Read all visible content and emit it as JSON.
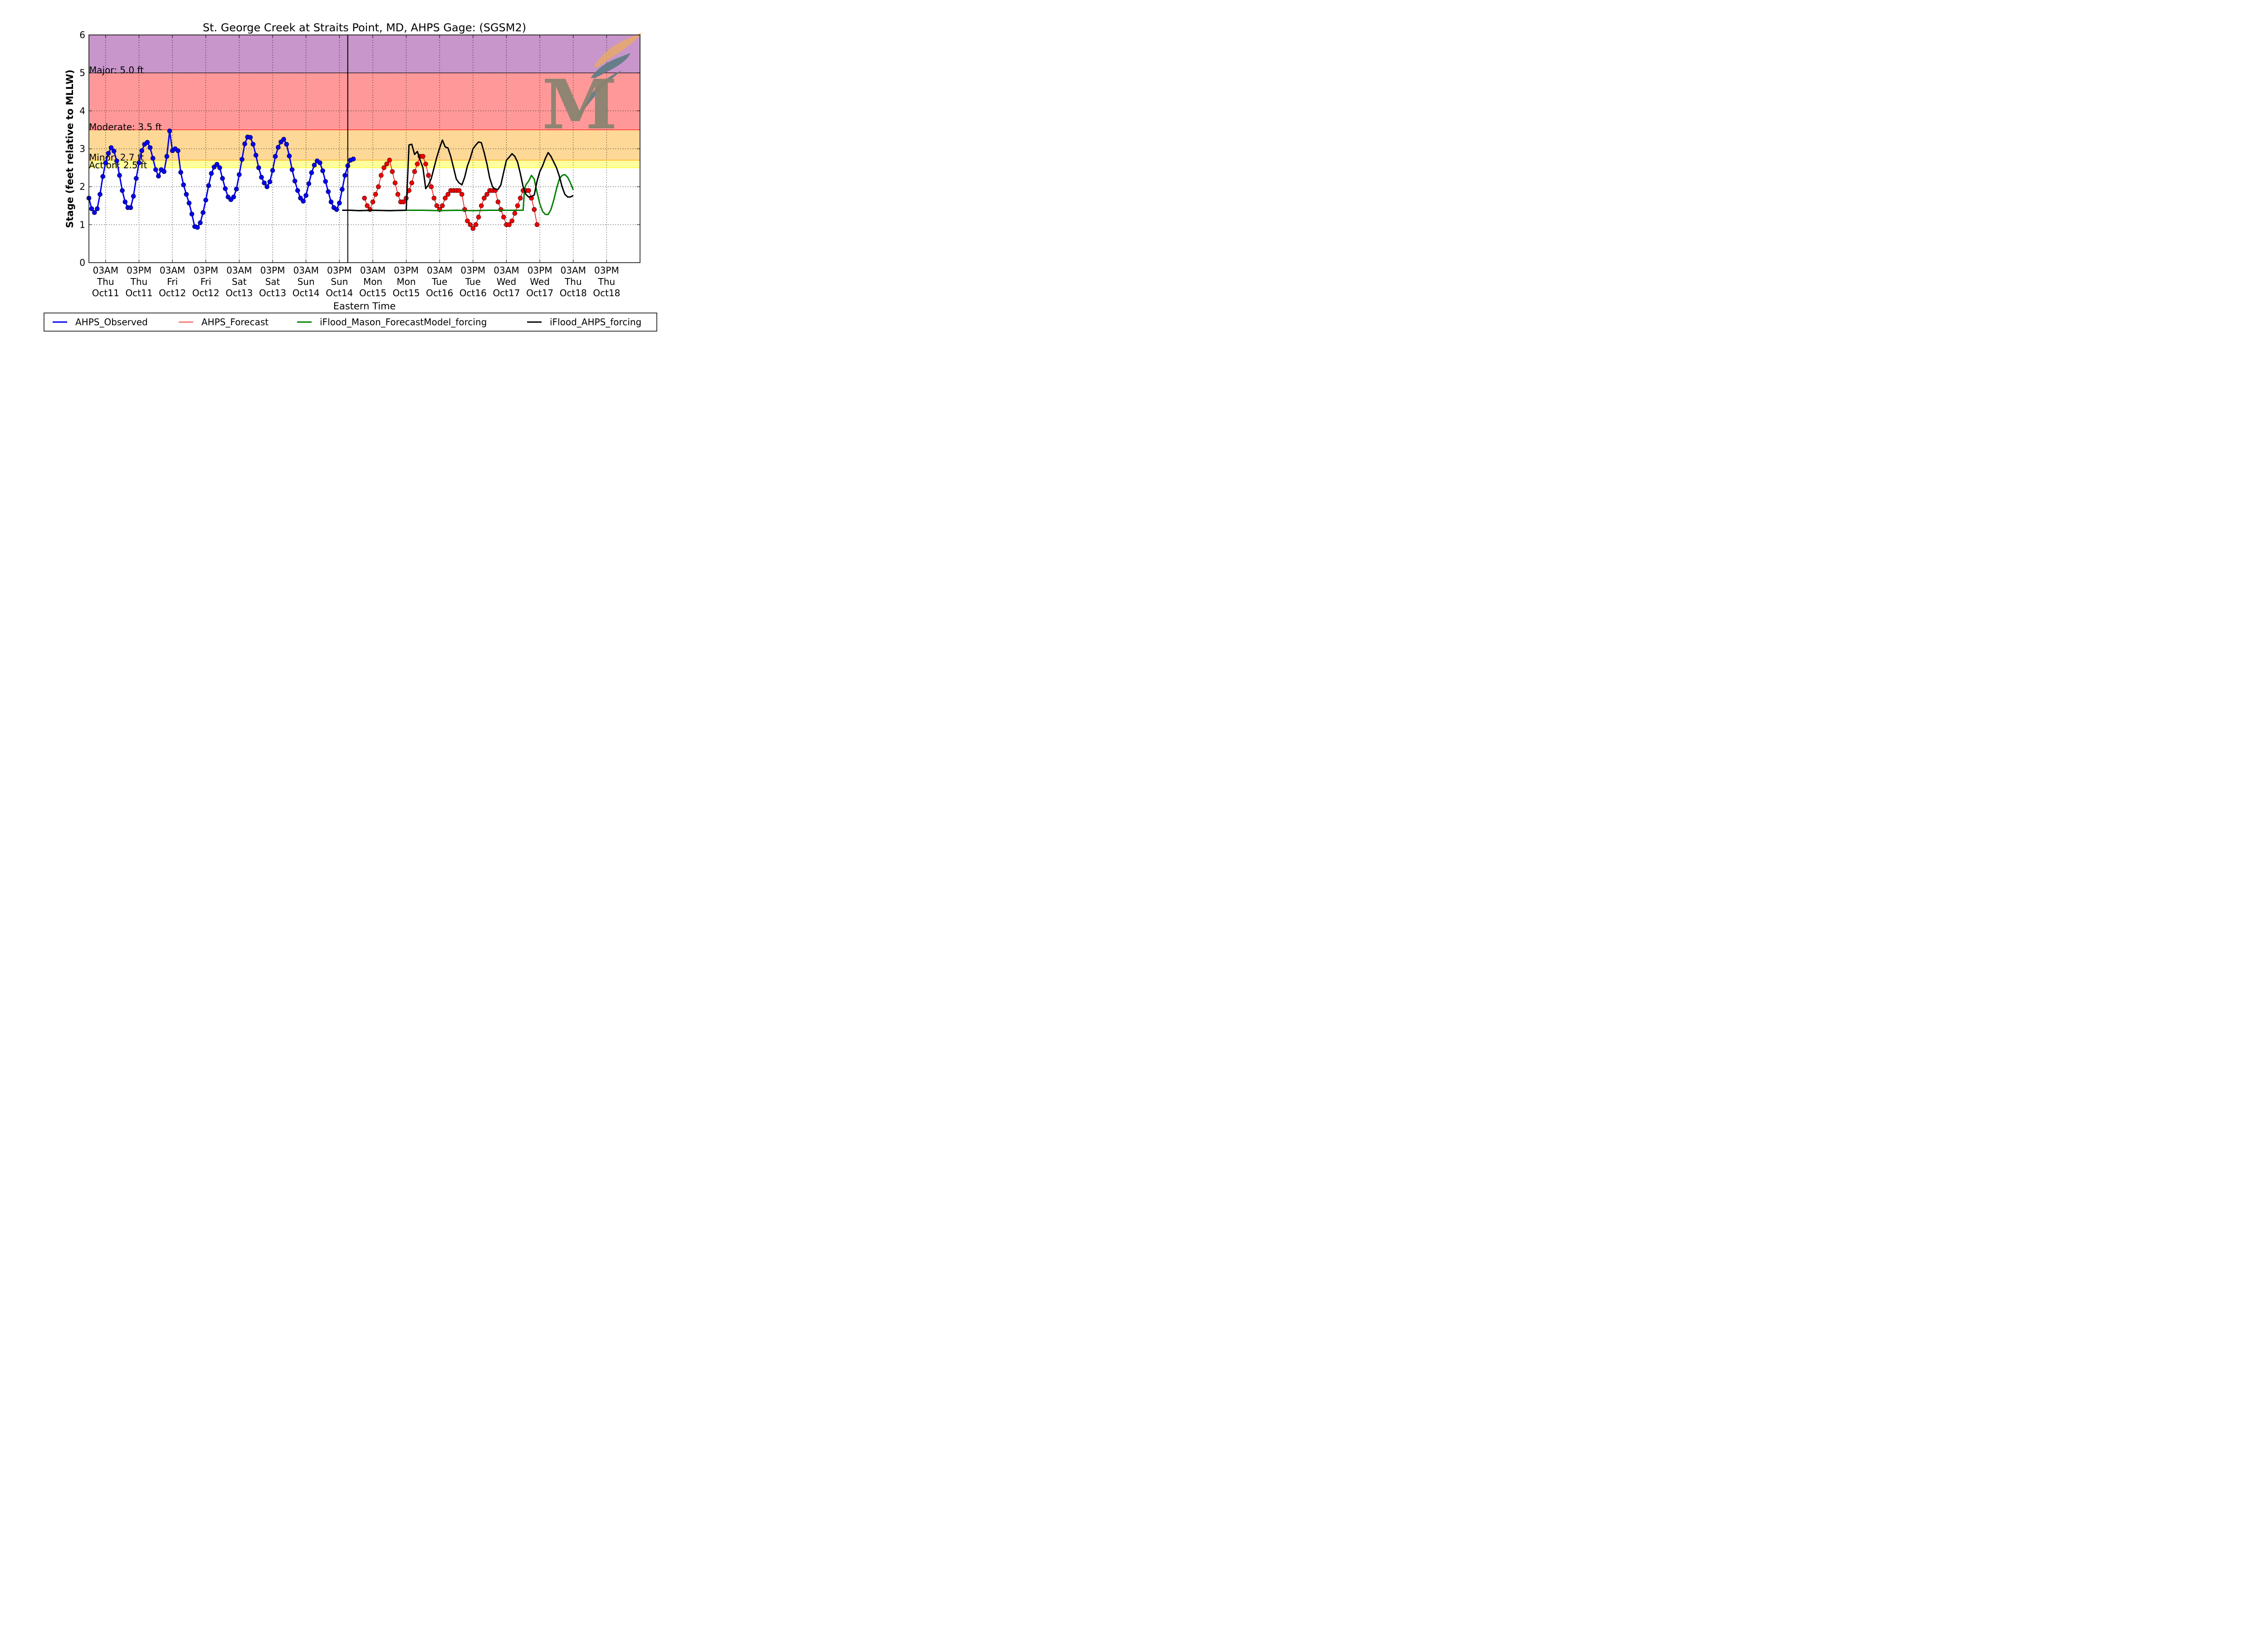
{
  "chart_data": {
    "type": "line",
    "title": "St. George Creek at Straits Point, MD, AHPS Gage: (SGSM2)",
    "xlabel": "Eastern Time",
    "ylabel": "Stage (feet relative to MLLW)",
    "ylim": [
      0,
      6
    ],
    "yticks": [
      0,
      1,
      2,
      3,
      4,
      5,
      6
    ],
    "xlim": [
      "2018-10-10 21:00",
      "2018-10-19 03:00"
    ],
    "xticks": [
      {
        "time": "2018-10-11 03:00",
        "label": [
          "03AM",
          "Thu",
          "Oct11"
        ]
      },
      {
        "time": "2018-10-11 15:00",
        "label": [
          "03PM",
          "Thu",
          "Oct11"
        ]
      },
      {
        "time": "2018-10-12 03:00",
        "label": [
          "03AM",
          "Fri",
          "Oct12"
        ]
      },
      {
        "time": "2018-10-12 15:00",
        "label": [
          "03PM",
          "Fri",
          "Oct12"
        ]
      },
      {
        "time": "2018-10-13 03:00",
        "label": [
          "03AM",
          "Sat",
          "Oct13"
        ]
      },
      {
        "time": "2018-10-13 15:00",
        "label": [
          "03PM",
          "Sat",
          "Oct13"
        ]
      },
      {
        "time": "2018-10-14 03:00",
        "label": [
          "03AM",
          "Sun",
          "Oct14"
        ]
      },
      {
        "time": "2018-10-14 15:00",
        "label": [
          "03PM",
          "Sun",
          "Oct14"
        ]
      },
      {
        "time": "2018-10-15 03:00",
        "label": [
          "03AM",
          "Mon",
          "Oct15"
        ]
      },
      {
        "time": "2018-10-15 15:00",
        "label": [
          "03PM",
          "Mon",
          "Oct15"
        ]
      },
      {
        "time": "2018-10-16 03:00",
        "label": [
          "03AM",
          "Tue",
          "Oct16"
        ]
      },
      {
        "time": "2018-10-16 15:00",
        "label": [
          "03PM",
          "Tue",
          "Oct16"
        ]
      },
      {
        "time": "2018-10-17 03:00",
        "label": [
          "03AM",
          "Wed",
          "Oct17"
        ]
      },
      {
        "time": "2018-10-17 15:00",
        "label": [
          "03PM",
          "Wed",
          "Oct17"
        ]
      },
      {
        "time": "2018-10-18 03:00",
        "label": [
          "03AM",
          "Thu",
          "Oct18"
        ]
      },
      {
        "time": "2018-10-18 15:00",
        "label": [
          "03PM",
          "Thu",
          "Oct18"
        ]
      }
    ],
    "now_marker": "2018-10-14 18:00",
    "grid": true,
    "legend_position": "bottom",
    "flood_bands": [
      {
        "name": "Major",
        "from": 5.0,
        "to": 6.0,
        "color": "#c896ca"
      },
      {
        "name": "Moderate",
        "from": 3.5,
        "to": 5.0,
        "color": "#ff9999"
      },
      {
        "name": "Minor",
        "from": 2.7,
        "to": 3.5,
        "color": "#fdd897"
      },
      {
        "name": "Action",
        "from": 2.5,
        "to": 2.7,
        "color": "#ffff9e"
      }
    ],
    "thresholds": [
      {
        "label": "Major: 5.0 ft",
        "value": 5.0,
        "line_color": "#000000"
      },
      {
        "label": "Moderate: 3.5 ft",
        "value": 3.5,
        "line_color": "#ff0000"
      },
      {
        "label": "Minor: 2.7 ft",
        "value": 2.7,
        "line_color": "#ffa500"
      },
      {
        "label": "Action: 2.5 ft",
        "value": 2.5,
        "line_color": "#ffff00"
      }
    ],
    "series": [
      {
        "name": "AHPS_Observed",
        "color": "#0000ee",
        "marker": "circle",
        "x": [
          "2018-10-10 21:00",
          "2018-10-10 22:00",
          "2018-10-10 23:00",
          "2018-10-11 00:00",
          "2018-10-11 01:00",
          "2018-10-11 02:00",
          "2018-10-11 03:00",
          "2018-10-11 04:00",
          "2018-10-11 05:00",
          "2018-10-11 06:00",
          "2018-10-11 07:00",
          "2018-10-11 08:00",
          "2018-10-11 09:00",
          "2018-10-11 10:00",
          "2018-10-11 11:00",
          "2018-10-11 12:00",
          "2018-10-11 13:00",
          "2018-10-11 14:00",
          "2018-10-11 15:00",
          "2018-10-11 16:00",
          "2018-10-11 17:00",
          "2018-10-11 18:00",
          "2018-10-11 19:00",
          "2018-10-11 20:00",
          "2018-10-11 21:00",
          "2018-10-11 22:00",
          "2018-10-11 23:00",
          "2018-10-12 00:00",
          "2018-10-12 01:00",
          "2018-10-12 02:00",
          "2018-10-12 03:00",
          "2018-10-12 04:00",
          "2018-10-12 05:00",
          "2018-10-12 06:00",
          "2018-10-12 07:00",
          "2018-10-12 08:00",
          "2018-10-12 09:00",
          "2018-10-12 10:00",
          "2018-10-12 11:00",
          "2018-10-12 12:00",
          "2018-10-12 13:00",
          "2018-10-12 14:00",
          "2018-10-12 15:00",
          "2018-10-12 16:00",
          "2018-10-12 17:00",
          "2018-10-12 18:00",
          "2018-10-12 19:00",
          "2018-10-12 20:00",
          "2018-10-12 21:00",
          "2018-10-12 22:00",
          "2018-10-12 23:00",
          "2018-10-13 00:00",
          "2018-10-13 01:00",
          "2018-10-13 02:00",
          "2018-10-13 03:00",
          "2018-10-13 04:00",
          "2018-10-13 05:00",
          "2018-10-13 06:00",
          "2018-10-13 07:00",
          "2018-10-13 08:00",
          "2018-10-13 09:00",
          "2018-10-13 10:00",
          "2018-10-13 11:00",
          "2018-10-13 12:00",
          "2018-10-13 13:00",
          "2018-10-13 14:00",
          "2018-10-13 15:00",
          "2018-10-13 16:00",
          "2018-10-13 17:00",
          "2018-10-13 18:00",
          "2018-10-13 19:00",
          "2018-10-13 20:00",
          "2018-10-13 21:00",
          "2018-10-13 22:00",
          "2018-10-13 23:00",
          "2018-10-14 00:00",
          "2018-10-14 01:00",
          "2018-10-14 02:00",
          "2018-10-14 03:00",
          "2018-10-14 04:00",
          "2018-10-14 05:00",
          "2018-10-14 06:00",
          "2018-10-14 07:00",
          "2018-10-14 08:00",
          "2018-10-14 09:00",
          "2018-10-14 10:00",
          "2018-10-14 11:00",
          "2018-10-14 12:00",
          "2018-10-14 13:00",
          "2018-10-14 14:00",
          "2018-10-14 15:00",
          "2018-10-14 16:00",
          "2018-10-14 17:00",
          "2018-10-14 18:00",
          "2018-10-14 19:00",
          "2018-10-14 20:00"
        ],
        "y": [
          1.7,
          1.42,
          1.32,
          1.42,
          1.8,
          2.27,
          2.63,
          2.88,
          3.03,
          2.94,
          2.68,
          2.3,
          1.9,
          1.6,
          1.45,
          1.45,
          1.75,
          2.22,
          2.63,
          2.95,
          3.12,
          3.17,
          3.03,
          2.75,
          2.45,
          2.28,
          2.45,
          2.4,
          2.8,
          3.47,
          2.95,
          3.0,
          2.95,
          2.38,
          2.05,
          1.8,
          1.57,
          1.28,
          0.95,
          0.93,
          1.05,
          1.32,
          1.65,
          2.03,
          2.35,
          2.52,
          2.59,
          2.5,
          2.22,
          1.95,
          1.73,
          1.66,
          1.73,
          1.94,
          2.32,
          2.72,
          3.13,
          3.31,
          3.3,
          3.12,
          2.83,
          2.5,
          2.25,
          2.1,
          2.0,
          2.13,
          2.43,
          2.8,
          3.04,
          3.18,
          3.25,
          3.12,
          2.81,
          2.45,
          2.15,
          1.9,
          1.7,
          1.62,
          1.77,
          2.08,
          2.37,
          2.57,
          2.68,
          2.63,
          2.42,
          2.14,
          1.87,
          1.6,
          1.45,
          1.4,
          1.57,
          1.93,
          2.3,
          2.55,
          2.7,
          2.73
        ]
      },
      {
        "name": "AHPS_Forecast",
        "color": "#ee0000",
        "marker": "circle",
        "x": [
          "2018-10-15 00:00",
          "2018-10-15 01:00",
          "2018-10-15 02:00",
          "2018-10-15 03:00",
          "2018-10-15 04:00",
          "2018-10-15 05:00",
          "2018-10-15 06:00",
          "2018-10-15 07:00",
          "2018-10-15 08:00",
          "2018-10-15 09:00",
          "2018-10-15 10:00",
          "2018-10-15 11:00",
          "2018-10-15 12:00",
          "2018-10-15 13:00",
          "2018-10-15 14:00",
          "2018-10-15 15:00",
          "2018-10-15 16:00",
          "2018-10-15 17:00",
          "2018-10-15 18:00",
          "2018-10-15 19:00",
          "2018-10-15 20:00",
          "2018-10-15 21:00",
          "2018-10-15 22:00",
          "2018-10-15 23:00",
          "2018-10-16 00:00",
          "2018-10-16 01:00",
          "2018-10-16 02:00",
          "2018-10-16 03:00",
          "2018-10-16 04:00",
          "2018-10-16 05:00",
          "2018-10-16 06:00",
          "2018-10-16 07:00",
          "2018-10-16 08:00",
          "2018-10-16 09:00",
          "2018-10-16 10:00",
          "2018-10-16 11:00",
          "2018-10-16 12:00",
          "2018-10-16 13:00",
          "2018-10-16 14:00",
          "2018-10-16 15:00",
          "2018-10-16 16:00",
          "2018-10-16 17:00",
          "2018-10-16 18:00",
          "2018-10-16 19:00",
          "2018-10-16 20:00",
          "2018-10-16 21:00",
          "2018-10-16 22:00",
          "2018-10-16 23:00",
          "2018-10-17 00:00",
          "2018-10-17 01:00",
          "2018-10-17 02:00",
          "2018-10-17 03:00",
          "2018-10-17 04:00",
          "2018-10-17 05:00",
          "2018-10-17 06:00",
          "2018-10-17 07:00",
          "2018-10-17 08:00",
          "2018-10-17 09:00",
          "2018-10-17 10:00",
          "2018-10-17 11:00",
          "2018-10-17 12:00",
          "2018-10-17 13:00",
          "2018-10-17 14:00"
        ],
        "y": [
          1.7,
          1.5,
          1.4,
          1.6,
          1.8,
          2.0,
          2.3,
          2.5,
          2.6,
          2.7,
          2.4,
          2.1,
          1.8,
          1.6,
          1.6,
          1.7,
          1.9,
          2.1,
          2.4,
          2.6,
          2.8,
          2.8,
          2.6,
          2.3,
          2.0,
          1.7,
          1.5,
          1.4,
          1.5,
          1.7,
          1.8,
          1.9,
          1.9,
          1.9,
          1.9,
          1.8,
          1.4,
          1.1,
          1.0,
          0.9,
          1.0,
          1.2,
          1.5,
          1.7,
          1.8,
          1.9,
          1.9,
          1.9,
          1.6,
          1.4,
          1.2,
          1.0,
          1.0,
          1.1,
          1.3,
          1.5,
          1.7,
          1.9,
          1.9,
          1.9,
          1.7,
          1.4,
          1.0
        ]
      },
      {
        "name": "iFlood_Mason_ForecastModel_forcing",
        "color": "#007f00",
        "marker": "none",
        "x": [
          "2018-10-14 16:00",
          "2018-10-14 19:00",
          "2018-10-14 22:00",
          "2018-10-15 03:00",
          "2018-10-15 09:00",
          "2018-10-15 15:00",
          "2018-10-15 21:00",
          "2018-10-16 03:00",
          "2018-10-16 09:00",
          "2018-10-16 15:00",
          "2018-10-16 21:00",
          "2018-10-17 03:00",
          "2018-10-17 09:00",
          "2018-10-17 09:30",
          "2018-10-17 10:00",
          "2018-10-17 11:00",
          "2018-10-17 12:00",
          "2018-10-17 13:00",
          "2018-10-17 14:00",
          "2018-10-17 15:00",
          "2018-10-17 16:00",
          "2018-10-17 17:00",
          "2018-10-17 18:00",
          "2018-10-17 19:00",
          "2018-10-17 20:00",
          "2018-10-17 21:00",
          "2018-10-17 22:00",
          "2018-10-17 23:00",
          "2018-10-18 00:00",
          "2018-10-18 01:00",
          "2018-10-18 02:00",
          "2018-10-18 03:00"
        ],
        "y": [
          1.38,
          1.38,
          1.37,
          1.38,
          1.37,
          1.38,
          1.38,
          1.37,
          1.38,
          1.37,
          1.38,
          1.38,
          1.38,
          1.95,
          2.05,
          2.15,
          2.3,
          2.2,
          1.85,
          1.55,
          1.35,
          1.27,
          1.27,
          1.4,
          1.65,
          1.95,
          2.2,
          2.3,
          2.32,
          2.25,
          2.1,
          1.92
        ]
      },
      {
        "name": "iFlood_AHPS_forcing",
        "color": "#000000",
        "marker": "none",
        "x": [
          "2018-10-14 16:00",
          "2018-10-14 19:00",
          "2018-10-14 22:00",
          "2018-10-15 03:00",
          "2018-10-15 09:00",
          "2018-10-15 14:59",
          "2018-10-15 15:00",
          "2018-10-15 16:00",
          "2018-10-15 17:00",
          "2018-10-15 18:00",
          "2018-10-15 19:00",
          "2018-10-15 20:00",
          "2018-10-15 21:00",
          "2018-10-15 22:00",
          "2018-10-15 23:00",
          "2018-10-16 00:00",
          "2018-10-16 01:00",
          "2018-10-16 02:00",
          "2018-10-16 03:00",
          "2018-10-16 04:00",
          "2018-10-16 05:00",
          "2018-10-16 06:00",
          "2018-10-16 07:00",
          "2018-10-16 08:00",
          "2018-10-16 09:00",
          "2018-10-16 10:00",
          "2018-10-16 11:00",
          "2018-10-16 12:00",
          "2018-10-16 13:00",
          "2018-10-16 14:00",
          "2018-10-16 15:00",
          "2018-10-16 16:00",
          "2018-10-16 17:00",
          "2018-10-16 18:00",
          "2018-10-16 19:00",
          "2018-10-16 20:00",
          "2018-10-16 21:00",
          "2018-10-16 22:00",
          "2018-10-16 23:00",
          "2018-10-17 00:00",
          "2018-10-17 01:00",
          "2018-10-17 02:00",
          "2018-10-17 03:00",
          "2018-10-17 04:00",
          "2018-10-17 05:00",
          "2018-10-17 06:00",
          "2018-10-17 07:00",
          "2018-10-17 08:00",
          "2018-10-17 09:00",
          "2018-10-17 10:00",
          "2018-10-17 11:00",
          "2018-10-17 12:00",
          "2018-10-17 13:00",
          "2018-10-17 14:00",
          "2018-10-17 15:00",
          "2018-10-17 16:00",
          "2018-10-17 17:00",
          "2018-10-17 18:00",
          "2018-10-17 19:00",
          "2018-10-17 20:00",
          "2018-10-17 21:00",
          "2018-10-17 22:00",
          "2018-10-17 23:00",
          "2018-10-18 00:00",
          "2018-10-18 01:00",
          "2018-10-18 02:00",
          "2018-10-18 03:00"
        ],
        "y": [
          1.38,
          1.38,
          1.37,
          1.38,
          1.37,
          1.38,
          1.38,
          3.1,
          3.12,
          2.85,
          2.93,
          2.7,
          2.5,
          1.95,
          2.05,
          2.22,
          2.5,
          2.78,
          3.02,
          3.23,
          3.05,
          3.02,
          2.8,
          2.5,
          2.2,
          2.1,
          2.05,
          2.25,
          2.55,
          2.75,
          3.0,
          3.1,
          3.18,
          3.16,
          2.9,
          2.6,
          2.23,
          2.0,
          1.93,
          1.93,
          2.05,
          2.38,
          2.7,
          2.78,
          2.87,
          2.8,
          2.65,
          2.35,
          2.0,
          1.8,
          1.73,
          1.75,
          1.78,
          2.15,
          2.4,
          2.55,
          2.75,
          2.9,
          2.8,
          2.65,
          2.5,
          2.28,
          2.0,
          1.8,
          1.73,
          1.73,
          1.77
        ]
      }
    ]
  },
  "legend": {
    "items": [
      {
        "label": "AHPS_Observed",
        "color": "#0000ee"
      },
      {
        "label": "AHPS_Forecast",
        "color": "#ee0000"
      },
      {
        "label": "iFlood_Mason_ForecastModel_forcing",
        "color": "#007f00"
      },
      {
        "label": "iFlood_AHPS_forcing",
        "color": "#000000"
      }
    ]
  },
  "logo": {
    "letter": "M",
    "colors": [
      "#8b8370",
      "#e6a96b",
      "#5b7b83"
    ]
  }
}
